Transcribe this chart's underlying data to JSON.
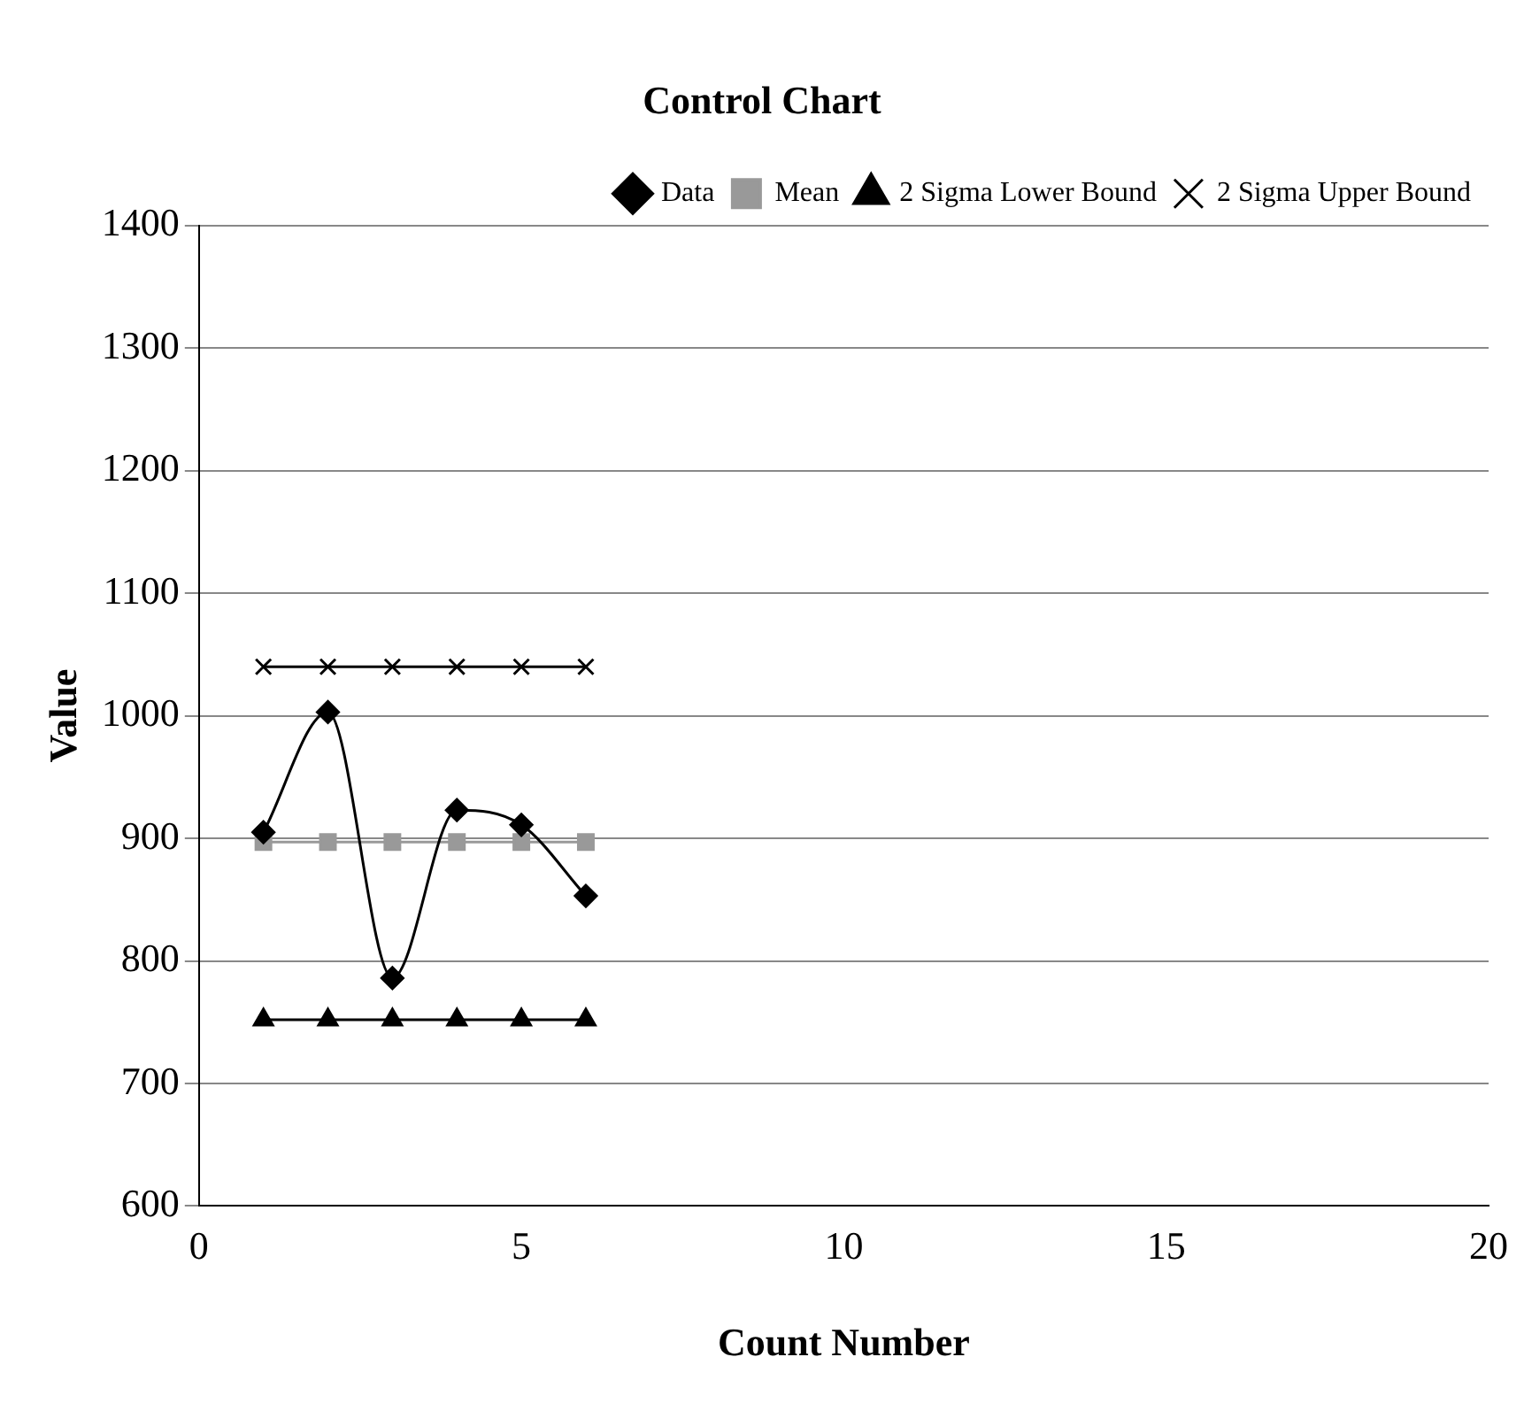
{
  "chart_data": {
    "type": "line",
    "title": "Control Chart",
    "xlabel": "Count Number",
    "ylabel": "Value",
    "x": [
      1,
      2,
      3,
      4,
      5,
      6
    ],
    "series": [
      {
        "name": "Data",
        "color": "#000000",
        "marker": "diamond",
        "values": [
          905,
          1003,
          786,
          923,
          911,
          853
        ]
      },
      {
        "name": "Mean",
        "color": "#999999",
        "marker": "square",
        "values": [
          897,
          897,
          897,
          897,
          897,
          897
        ]
      },
      {
        "name": "2 Sigma Lower Bound",
        "color": "#000000",
        "marker": "triangle",
        "values": [
          752,
          752,
          752,
          752,
          752,
          752
        ]
      },
      {
        "name": "2 Sigma Upper Bound",
        "color": "#000000",
        "marker": "cross",
        "values": [
          1040,
          1040,
          1040,
          1040,
          1040,
          1040
        ]
      }
    ],
    "xlim": [
      0,
      20
    ],
    "xticks": [
      0,
      5,
      10,
      15,
      20
    ],
    "ylim": [
      600,
      1400
    ],
    "yticks": [
      600,
      700,
      800,
      900,
      1000,
      1100,
      1200,
      1300,
      1400
    ],
    "grid": "y",
    "legend": "top right"
  }
}
